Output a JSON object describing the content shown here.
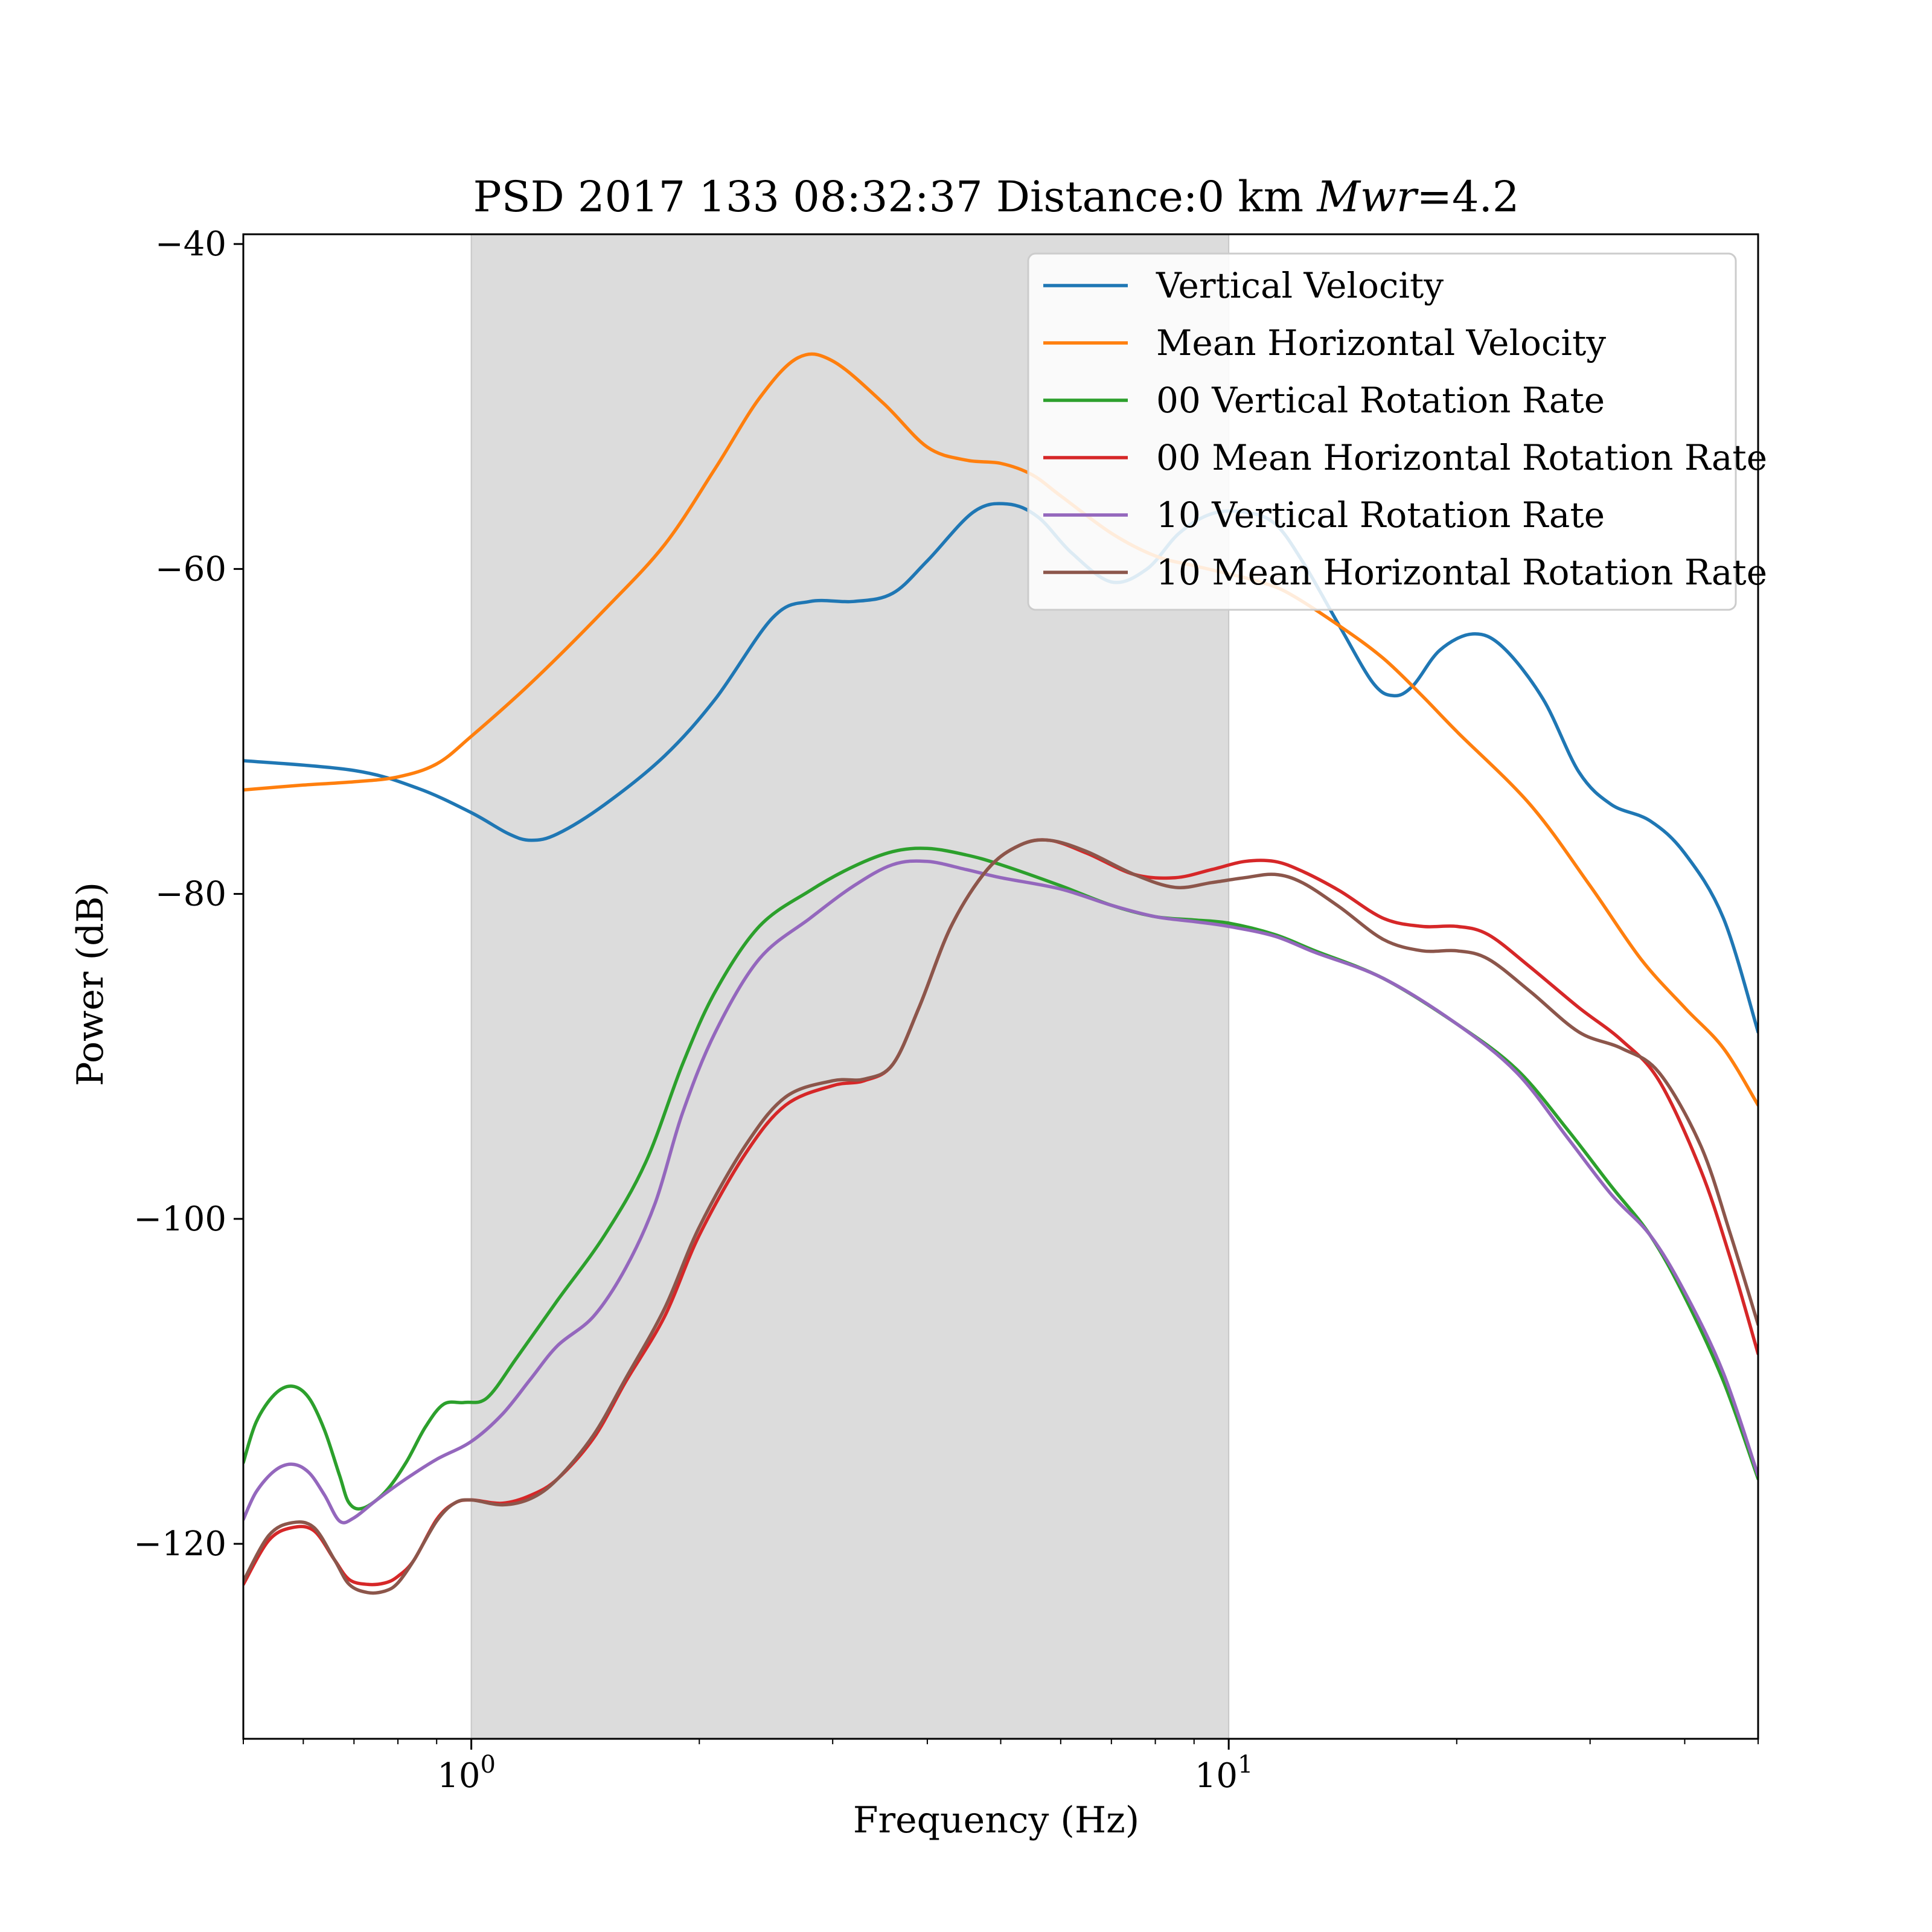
{
  "chart_data": {
    "type": "line",
    "title": {
      "prefix": "PSD 2017 133 08:32:37 Distance:0 km ",
      "symbol": "Mwr",
      "suffix": "=4.2"
    },
    "xlabel": "Frequency (Hz)",
    "ylabel": "Power (dB)",
    "x_scale": "log",
    "xlim": [
      0.5,
      50
    ],
    "ylim": [
      -132,
      -39.4
    ],
    "x_ticks": [
      {
        "value": 1,
        "base": "10",
        "exp": "0"
      },
      {
        "value": 10,
        "base": "10",
        "exp": "1"
      }
    ],
    "y_ticks": [
      {
        "value": -40,
        "label": "−40"
      },
      {
        "value": -60,
        "label": "−60"
      },
      {
        "value": -80,
        "label": "−80"
      },
      {
        "value": -100,
        "label": "−100"
      },
      {
        "value": -120,
        "label": "−120"
      }
    ],
    "shaded_band": {
      "x_start": 1,
      "x_end": 10,
      "color": "#dcdcdc"
    },
    "legend_position": "upper right",
    "grid": false,
    "series": [
      {
        "name": "Vertical Velocity",
        "color": "#1f77b4",
        "points": [
          [
            0.5,
            -71.8
          ],
          [
            0.7,
            -72.4
          ],
          [
            0.85,
            -73.5
          ],
          [
            1.0,
            -75.0
          ],
          [
            1.12,
            -76.3
          ],
          [
            1.2,
            -76.7
          ],
          [
            1.3,
            -76.3
          ],
          [
            1.5,
            -74.5
          ],
          [
            1.8,
            -71.5
          ],
          [
            2.1,
            -68.0
          ],
          [
            2.5,
            -63.0
          ],
          [
            2.8,
            -62.0
          ],
          [
            3.2,
            -62.0
          ],
          [
            3.6,
            -61.5
          ],
          [
            4.0,
            -59.5
          ],
          [
            4.6,
            -56.5
          ],
          [
            5.1,
            -56.0
          ],
          [
            5.6,
            -56.8
          ],
          [
            6.2,
            -59.0
          ],
          [
            7.0,
            -60.8
          ],
          [
            7.8,
            -60.0
          ],
          [
            8.6,
            -57.8
          ],
          [
            9.5,
            -56.6
          ],
          [
            10.5,
            -56.5
          ],
          [
            11.5,
            -57.2
          ],
          [
            12.5,
            -59.5
          ],
          [
            14,
            -63.5
          ],
          [
            15.5,
            -67.0
          ],
          [
            16.5,
            -67.8
          ],
          [
            17.5,
            -67.2
          ],
          [
            19,
            -65.0
          ],
          [
            21,
            -64.0
          ],
          [
            23,
            -64.8
          ],
          [
            26,
            -68.0
          ],
          [
            29,
            -72.5
          ],
          [
            32,
            -74.5
          ],
          [
            36,
            -75.5
          ],
          [
            40,
            -77.5
          ],
          [
            45,
            -81.5
          ],
          [
            50,
            -88.5
          ]
        ]
      },
      {
        "name": "Mean Horizontal Velocity",
        "color": "#ff7f0e",
        "points": [
          [
            0.5,
            -73.6
          ],
          [
            0.6,
            -73.3
          ],
          [
            0.7,
            -73.1
          ],
          [
            0.8,
            -72.8
          ],
          [
            0.9,
            -72.0
          ],
          [
            1.0,
            -70.3
          ],
          [
            1.2,
            -67.0
          ],
          [
            1.5,
            -62.5
          ],
          [
            1.8,
            -58.5
          ],
          [
            2.1,
            -53.8
          ],
          [
            2.4,
            -49.5
          ],
          [
            2.7,
            -47.0
          ],
          [
            3.0,
            -47.2
          ],
          [
            3.5,
            -49.8
          ],
          [
            4.0,
            -52.5
          ],
          [
            4.5,
            -53.3
          ],
          [
            5.0,
            -53.5
          ],
          [
            5.5,
            -54.2
          ],
          [
            6.0,
            -55.5
          ],
          [
            7.0,
            -57.8
          ],
          [
            8.0,
            -59.2
          ],
          [
            9.0,
            -59.8
          ],
          [
            10.0,
            -60.3
          ],
          [
            11,
            -60.8
          ],
          [
            12,
            -61.5
          ],
          [
            14,
            -63.5
          ],
          [
            16,
            -65.5
          ],
          [
            18,
            -67.8
          ],
          [
            20,
            -70.0
          ],
          [
            25,
            -74.5
          ],
          [
            30,
            -79.5
          ],
          [
            35,
            -84.0
          ],
          [
            40,
            -87.0
          ],
          [
            45,
            -89.5
          ],
          [
            50,
            -93.0
          ]
        ]
      },
      {
        "name": "00 Vertical Rotation Rate",
        "color": "#2ca02c",
        "points": [
          [
            0.5,
            -115.0
          ],
          [
            0.52,
            -112.5
          ],
          [
            0.55,
            -110.8
          ],
          [
            0.58,
            -110.3
          ],
          [
            0.61,
            -111.0
          ],
          [
            0.64,
            -113.0
          ],
          [
            0.67,
            -115.8
          ],
          [
            0.69,
            -117.5
          ],
          [
            0.72,
            -117.8
          ],
          [
            0.77,
            -116.8
          ],
          [
            0.82,
            -115.0
          ],
          [
            0.87,
            -112.8
          ],
          [
            0.92,
            -111.4
          ],
          [
            0.98,
            -111.3
          ],
          [
            1.05,
            -111.0
          ],
          [
            1.15,
            -108.5
          ],
          [
            1.3,
            -105.0
          ],
          [
            1.5,
            -101.0
          ],
          [
            1.7,
            -96.5
          ],
          [
            1.9,
            -90.5
          ],
          [
            2.1,
            -86.0
          ],
          [
            2.4,
            -82.0
          ],
          [
            2.8,
            -79.8
          ],
          [
            3.2,
            -78.3
          ],
          [
            3.6,
            -77.4
          ],
          [
            4.0,
            -77.2
          ],
          [
            4.5,
            -77.6
          ],
          [
            5.0,
            -78.2
          ],
          [
            6.0,
            -79.5
          ],
          [
            7.0,
            -80.7
          ],
          [
            8.0,
            -81.4
          ],
          [
            9.0,
            -81.6
          ],
          [
            10.0,
            -81.8
          ],
          [
            11.5,
            -82.5
          ],
          [
            13,
            -83.5
          ],
          [
            16,
            -85.2
          ],
          [
            20,
            -88.0
          ],
          [
            24,
            -90.8
          ],
          [
            28,
            -94.5
          ],
          [
            32,
            -98.0
          ],
          [
            36,
            -101.0
          ],
          [
            40,
            -104.8
          ],
          [
            45,
            -110.0
          ],
          [
            50,
            -116.0
          ]
        ]
      },
      {
        "name": "00 Mean Horizontal Rotation Rate",
        "color": "#d62728",
        "points": [
          [
            0.5,
            -122.5
          ],
          [
            0.54,
            -119.8
          ],
          [
            0.58,
            -119.0
          ],
          [
            0.62,
            -119.2
          ],
          [
            0.66,
            -121.0
          ],
          [
            0.69,
            -122.2
          ],
          [
            0.73,
            -122.5
          ],
          [
            0.77,
            -122.4
          ],
          [
            0.8,
            -122.0
          ],
          [
            0.84,
            -121.0
          ],
          [
            0.9,
            -118.5
          ],
          [
            0.95,
            -117.5
          ],
          [
            1.0,
            -117.3
          ],
          [
            1.1,
            -117.5
          ],
          [
            1.2,
            -117.0
          ],
          [
            1.3,
            -116.0
          ],
          [
            1.45,
            -113.5
          ],
          [
            1.6,
            -110.0
          ],
          [
            1.8,
            -106.0
          ],
          [
            2.0,
            -101.0
          ],
          [
            2.3,
            -96.0
          ],
          [
            2.6,
            -93.0
          ],
          [
            3.0,
            -91.8
          ],
          [
            3.3,
            -91.5
          ],
          [
            3.6,
            -90.5
          ],
          [
            3.9,
            -87.0
          ],
          [
            4.3,
            -82.0
          ],
          [
            4.8,
            -78.5
          ],
          [
            5.3,
            -77.0
          ],
          [
            5.8,
            -76.7
          ],
          [
            6.5,
            -77.5
          ],
          [
            7.5,
            -78.8
          ],
          [
            8.5,
            -79.0
          ],
          [
            9.5,
            -78.5
          ],
          [
            10.5,
            -78.0
          ],
          [
            11.5,
            -78.0
          ],
          [
            12.5,
            -78.6
          ],
          [
            14,
            -79.8
          ],
          [
            16,
            -81.5
          ],
          [
            18,
            -82.0
          ],
          [
            20,
            -82.0
          ],
          [
            22,
            -82.5
          ],
          [
            25,
            -84.5
          ],
          [
            29,
            -87.0
          ],
          [
            33,
            -89.0
          ],
          [
            37,
            -91.5
          ],
          [
            42,
            -97.0
          ],
          [
            46,
            -102.5
          ],
          [
            50,
            -108.3
          ]
        ]
      },
      {
        "name": "10 Vertical Rotation Rate",
        "color": "#9467bd",
        "points": [
          [
            0.5,
            -118.5
          ],
          [
            0.52,
            -116.8
          ],
          [
            0.55,
            -115.5
          ],
          [
            0.58,
            -115.1
          ],
          [
            0.61,
            -115.6
          ],
          [
            0.64,
            -117.0
          ],
          [
            0.67,
            -118.6
          ],
          [
            0.7,
            -118.4
          ],
          [
            0.75,
            -117.3
          ],
          [
            0.82,
            -116.0
          ],
          [
            0.9,
            -114.8
          ],
          [
            1.0,
            -113.7
          ],
          [
            1.1,
            -112.0
          ],
          [
            1.2,
            -109.8
          ],
          [
            1.3,
            -107.8
          ],
          [
            1.45,
            -106.0
          ],
          [
            1.6,
            -103.0
          ],
          [
            1.75,
            -99.0
          ],
          [
            1.9,
            -93.5
          ],
          [
            2.1,
            -88.5
          ],
          [
            2.4,
            -84.0
          ],
          [
            2.8,
            -81.5
          ],
          [
            3.2,
            -79.5
          ],
          [
            3.6,
            -78.2
          ],
          [
            4.0,
            -78.0
          ],
          [
            4.5,
            -78.5
          ],
          [
            5.0,
            -79.0
          ],
          [
            6.0,
            -79.7
          ],
          [
            7.0,
            -80.7
          ],
          [
            8.0,
            -81.4
          ],
          [
            9.0,
            -81.7
          ],
          [
            10.0,
            -82.0
          ],
          [
            11.5,
            -82.6
          ],
          [
            13,
            -83.6
          ],
          [
            16,
            -85.2
          ],
          [
            20,
            -88.0
          ],
          [
            24,
            -91.0
          ],
          [
            28,
            -95.0
          ],
          [
            32,
            -98.5
          ],
          [
            36,
            -101.0
          ],
          [
            40,
            -104.5
          ],
          [
            45,
            -109.5
          ],
          [
            50,
            -115.8
          ]
        ]
      },
      {
        "name": "10 Mean Horizontal Rotation Rate",
        "color": "#8c564b",
        "points": [
          [
            0.5,
            -122.3
          ],
          [
            0.54,
            -119.5
          ],
          [
            0.58,
            -118.7
          ],
          [
            0.62,
            -119.0
          ],
          [
            0.66,
            -121.0
          ],
          [
            0.69,
            -122.5
          ],
          [
            0.73,
            -123.0
          ],
          [
            0.77,
            -122.9
          ],
          [
            0.8,
            -122.4
          ],
          [
            0.84,
            -121.0
          ],
          [
            0.9,
            -118.6
          ],
          [
            0.95,
            -117.5
          ],
          [
            1.0,
            -117.3
          ],
          [
            1.1,
            -117.6
          ],
          [
            1.2,
            -117.2
          ],
          [
            1.3,
            -116.0
          ],
          [
            1.45,
            -113.3
          ],
          [
            1.6,
            -109.8
          ],
          [
            1.8,
            -105.5
          ],
          [
            2.0,
            -100.5
          ],
          [
            2.3,
            -95.5
          ],
          [
            2.6,
            -92.5
          ],
          [
            3.0,
            -91.5
          ],
          [
            3.3,
            -91.4
          ],
          [
            3.6,
            -90.5
          ],
          [
            3.9,
            -87.0
          ],
          [
            4.3,
            -82.0
          ],
          [
            4.8,
            -78.5
          ],
          [
            5.3,
            -77.0
          ],
          [
            5.8,
            -76.7
          ],
          [
            6.5,
            -77.4
          ],
          [
            7.5,
            -78.8
          ],
          [
            8.5,
            -79.6
          ],
          [
            9.5,
            -79.3
          ],
          [
            10.5,
            -79.0
          ],
          [
            11.5,
            -78.8
          ],
          [
            12.5,
            -79.3
          ],
          [
            14,
            -80.8
          ],
          [
            16,
            -82.8
          ],
          [
            18,
            -83.5
          ],
          [
            20,
            -83.5
          ],
          [
            22,
            -84.0
          ],
          [
            25,
            -86.0
          ],
          [
            29,
            -88.5
          ],
          [
            33,
            -89.5
          ],
          [
            37,
            -91.0
          ],
          [
            42,
            -95.5
          ],
          [
            46,
            -101.0
          ],
          [
            50,
            -106.5
          ]
        ]
      }
    ]
  }
}
